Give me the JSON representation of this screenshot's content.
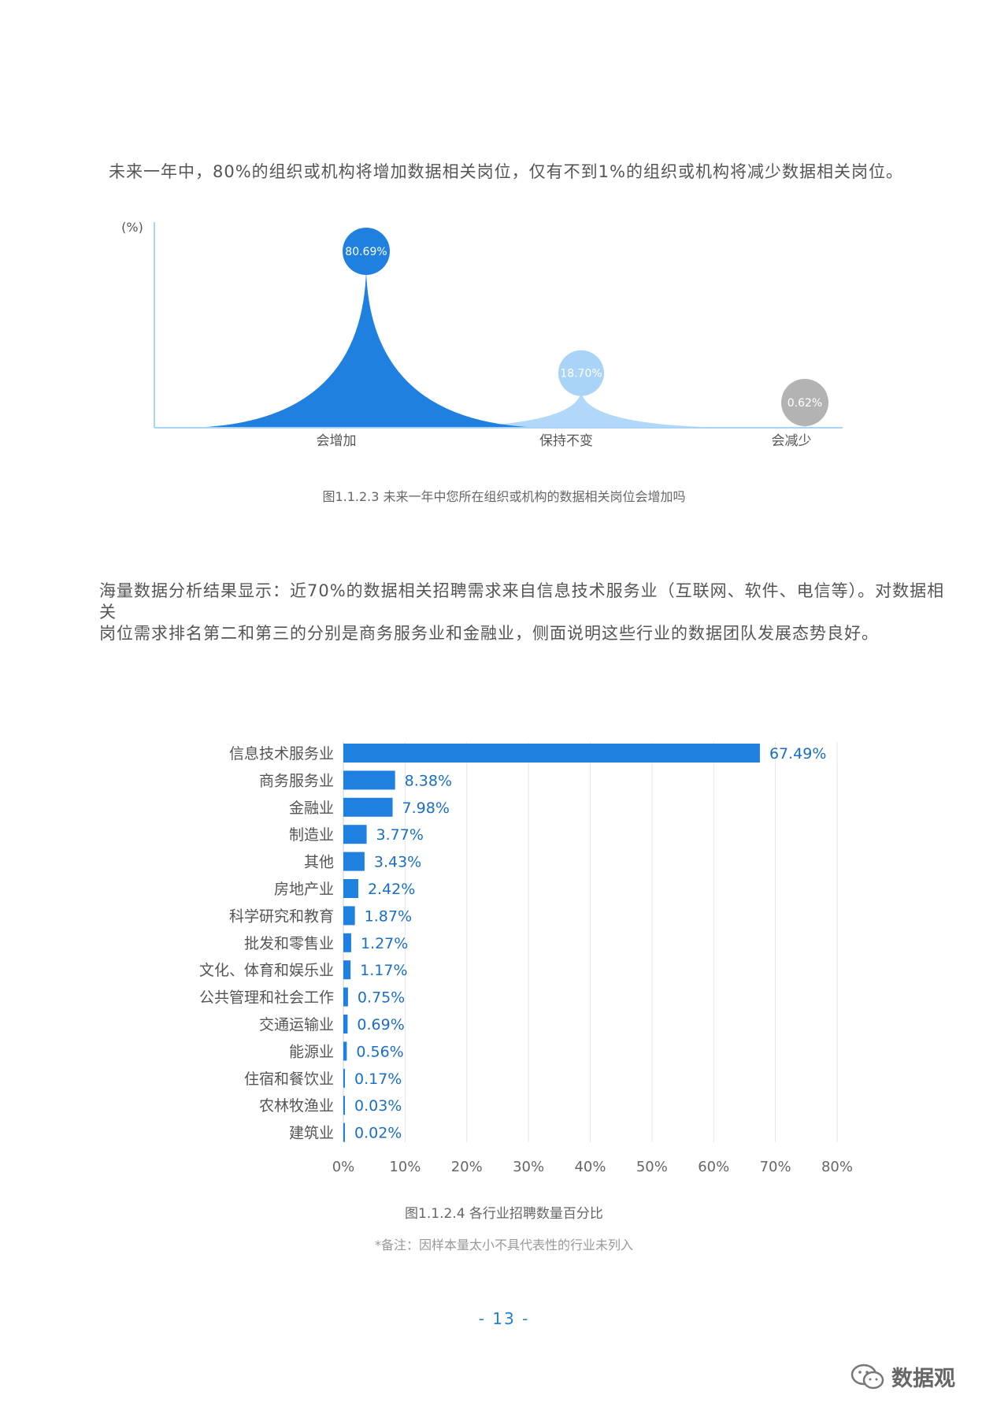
{
  "intro1": "未来一年中，80%的组织或机构将增加数据相关岗位，仅有不到1%的组织或机构将减少数据相关岗位。",
  "intro2_lines": [
    "海量数据分析结果显示：近70%的数据相关招聘需求来自信息技术服务业（互联网、软件、电信等）。对数据相关",
    "岗位需求排名第二和第三的分别是商务服务业和金融业，侧面说明这些行业的数据团队发展态势良好。"
  ],
  "chart1_caption": "图1.1.2.3 未来一年中您所在组织或机构的数据相关岗位会增加吗",
  "chart2_caption": "图1.1.2.4 各行业招聘数量百分比",
  "chart2_note": "*备注：因样本量太小不具代表性的行业未列入",
  "page_number": "- 13 -",
  "watermark": "数据观",
  "chart_data": [
    {
      "type": "area",
      "ylabel": "(%)",
      "categories": [
        "会增加",
        "保持不变",
        "会减少"
      ],
      "values": [
        80.69,
        18.7,
        0.62
      ],
      "value_labels": [
        "80.69%",
        "18.70%",
        "0.62%"
      ],
      "colors": [
        "#1f80e0",
        "#a9d4f7",
        "#b3b3b3"
      ]
    },
    {
      "type": "bar",
      "orientation": "horizontal",
      "categories": [
        "信息技术服务业",
        "商务服务业",
        "金融业",
        "制造业",
        "其他",
        "房地产业",
        "科学研究和教育",
        "批发和零售业",
        "文化、体育和娱乐业",
        "公共管理和社会工作",
        "交通运输业",
        "能源业",
        "住宿和餐饮业",
        "农林牧渔业",
        "建筑业"
      ],
      "values": [
        67.49,
        8.38,
        7.98,
        3.77,
        3.43,
        2.42,
        1.87,
        1.27,
        1.17,
        0.75,
        0.69,
        0.56,
        0.17,
        0.03,
        0.02
      ],
      "value_labels": [
        "67.49%",
        "8.38%",
        "7.98%",
        "3.77%",
        "3.43%",
        "2.42%",
        "1.87%",
        "1.27%",
        "1.17%",
        "0.75%",
        "0.69%",
        "0.56%",
        "0.17%",
        "0.03%",
        "0.02%"
      ],
      "xlim": [
        0,
        80
      ],
      "xticks": [
        "0%",
        "10%",
        "20%",
        "30%",
        "40%",
        "50%",
        "60%",
        "70%",
        "80%"
      ],
      "grid": true,
      "bar_color": "#1f80e0",
      "label_color": "#1a6fc4"
    }
  ]
}
